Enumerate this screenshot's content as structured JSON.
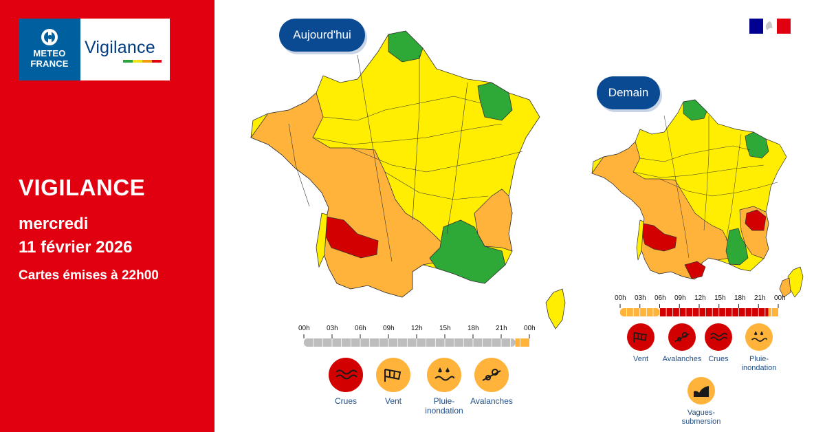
{
  "header": {
    "brand_line1": "METEO",
    "brand_line2": "FRANCE",
    "product": "Vigilance",
    "brand_colors": [
      "#2aa33b",
      "#f0e11a",
      "#f39c12",
      "#e1000f"
    ]
  },
  "left_panel": {
    "title": "VIGILANCE",
    "day": "mercredi",
    "date": "11 février 2026",
    "issued": "Cartes émises à 22h00",
    "background": "#e1000f"
  },
  "colors": {
    "green": "#2ea836",
    "yellow": "#ffee00",
    "orange": "#ffb33b",
    "red": "#d20000",
    "grey": "#bdbdbd"
  },
  "today": {
    "label": "Aujourd'hui",
    "timeline_ticks": [
      "00h",
      "03h",
      "06h",
      "09h",
      "12h",
      "15h",
      "18h",
      "21h",
      "00h"
    ],
    "timeline_segments": [
      {
        "level": "grey",
        "from": 0,
        "to": 22.5
      },
      {
        "level": "orange",
        "from": 22.5,
        "to": 24
      }
    ],
    "events": [
      {
        "label": "Crues",
        "level": "red",
        "icon": "waves-icon"
      },
      {
        "label": "Vent",
        "level": "orange",
        "icon": "windsock-icon"
      },
      {
        "label": "Pluie-\ninondation",
        "level": "orange",
        "icon": "rain-flood-icon"
      },
      {
        "label": "Avalanches",
        "level": "orange",
        "icon": "avalanche-icon"
      }
    ]
  },
  "tomorrow": {
    "label": "Demain",
    "timeline_ticks": [
      "00h",
      "03h",
      "06h",
      "09h",
      "12h",
      "15h",
      "18h",
      "21h",
      "00h"
    ],
    "timeline_segments": [
      {
        "level": "orange",
        "from": 0,
        "to": 6
      },
      {
        "level": "red",
        "from": 6,
        "to": 22.5
      },
      {
        "level": "orange",
        "from": 22.5,
        "to": 24
      }
    ],
    "events": [
      {
        "label": "Vent",
        "level": "red",
        "icon": "windsock-icon"
      },
      {
        "label": "Avalanches",
        "level": "red",
        "icon": "avalanche-icon"
      },
      {
        "label": "Crues",
        "level": "red",
        "icon": "waves-icon"
      },
      {
        "label": "Pluie-\ninondation",
        "level": "orange",
        "icon": "rain-flood-icon"
      },
      {
        "label": "Vagues-\nsubmersion",
        "level": "orange",
        "icon": "waves-submersion-icon"
      }
    ]
  }
}
